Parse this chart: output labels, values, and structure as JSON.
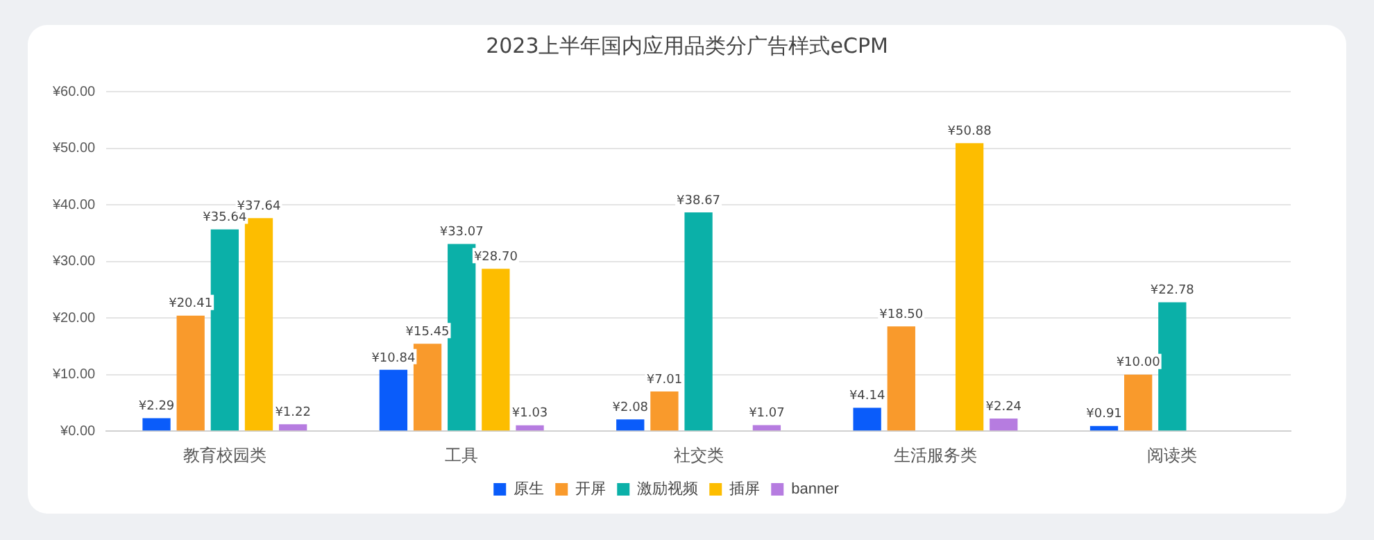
{
  "chart_data": {
    "type": "bar",
    "title": "2023上半年国内应用品类分广告样式eCPM",
    "categories": [
      "教育校园类",
      "工具",
      "社交类",
      "生活服务类",
      "阅读类"
    ],
    "series": [
      {
        "name": "原生",
        "color": "#0a5cfa",
        "values": [
          2.29,
          10.84,
          2.08,
          4.14,
          0.91
        ],
        "value_labels": [
          "¥2.29",
          "¥10.84",
          "¥2.08",
          "¥4.14",
          "¥0.91"
        ]
      },
      {
        "name": "开屏",
        "color": "#f99a2c",
        "values": [
          20.41,
          15.45,
          7.01,
          18.5,
          10.0
        ],
        "value_labels": [
          "¥20.41",
          "¥15.45",
          "¥7.01",
          "¥18.50",
          "¥10.00"
        ]
      },
      {
        "name": "激励视频",
        "color": "#0bb0a8",
        "values": [
          35.64,
          33.07,
          38.67,
          null,
          22.78
        ],
        "value_labels": [
          "¥35.64",
          "¥33.07",
          "¥38.67",
          null,
          "¥22.78"
        ]
      },
      {
        "name": "插屏",
        "color": "#fdbd00",
        "values": [
          37.64,
          28.7,
          null,
          50.88,
          null
        ],
        "value_labels": [
          "¥37.64",
          "¥28.70",
          null,
          "¥50.88",
          null
        ]
      },
      {
        "name": "banner",
        "color": "#b67ce0",
        "values": [
          1.22,
          1.03,
          1.07,
          2.24,
          null
        ],
        "value_labels": [
          "¥1.22",
          "¥1.03",
          "¥1.07",
          "¥2.24",
          null
        ]
      }
    ],
    "ylim": [
      0,
      60
    ],
    "yticks": [
      {
        "value": 0,
        "label": "¥0.00"
      },
      {
        "value": 10,
        "label": "¥10.00"
      },
      {
        "value": 20,
        "label": "¥20.00"
      },
      {
        "value": 30,
        "label": "¥30.00"
      },
      {
        "value": 40,
        "label": "¥40.00"
      },
      {
        "value": 50,
        "label": "¥50.00"
      },
      {
        "value": 60,
        "label": "¥60.00"
      }
    ],
    "grid": "y",
    "legend": "bottom"
  }
}
